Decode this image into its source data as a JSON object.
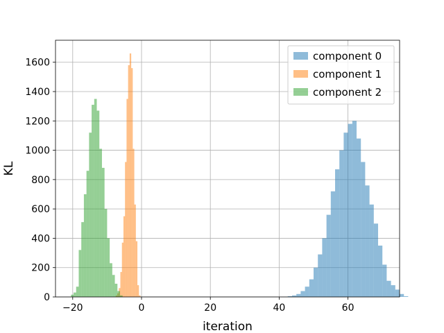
{
  "chart_data": {
    "type": "histogram",
    "xlabel": "iteration",
    "ylabel": "KL",
    "xlim": [
      -25,
      75
    ],
    "ylim": [
      0,
      1750
    ],
    "x_ticks": [
      -20,
      0,
      20,
      40,
      60
    ],
    "y_ticks": [
      0,
      200,
      400,
      600,
      800,
      1000,
      1200,
      1400,
      1600
    ],
    "grid": true,
    "legend_position": "top-right",
    "series": [
      {
        "name": "component 0",
        "color": "#1f77b4",
        "bin_start": 42.5,
        "bin_width": 1.25,
        "counts": [
          5,
          10,
          20,
          40,
          70,
          120,
          200,
          290,
          400,
          560,
          720,
          870,
          1000,
          1120,
          1180,
          1200,
          1080,
          920,
          760,
          630,
          500,
          350,
          220,
          110,
          80,
          50,
          20,
          5
        ]
      },
      {
        "name": "component 1",
        "color": "#ff7f0e",
        "bin_start": -7.5,
        "bin_width": 0.45,
        "counts": [
          10,
          25,
          60,
          170,
          370,
          550,
          920,
          1350,
          1580,
          1660,
          1560,
          1010,
          630,
          380,
          80,
          10
        ]
      },
      {
        "name": "component 2",
        "color": "#2ca02c",
        "bin_start": -20.5,
        "bin_width": 0.75,
        "counts": [
          15,
          30,
          70,
          320,
          510,
          700,
          860,
          1120,
          1310,
          1350,
          1270,
          1010,
          880,
          600,
          400,
          230,
          150,
          90,
          40,
          10
        ]
      }
    ]
  }
}
